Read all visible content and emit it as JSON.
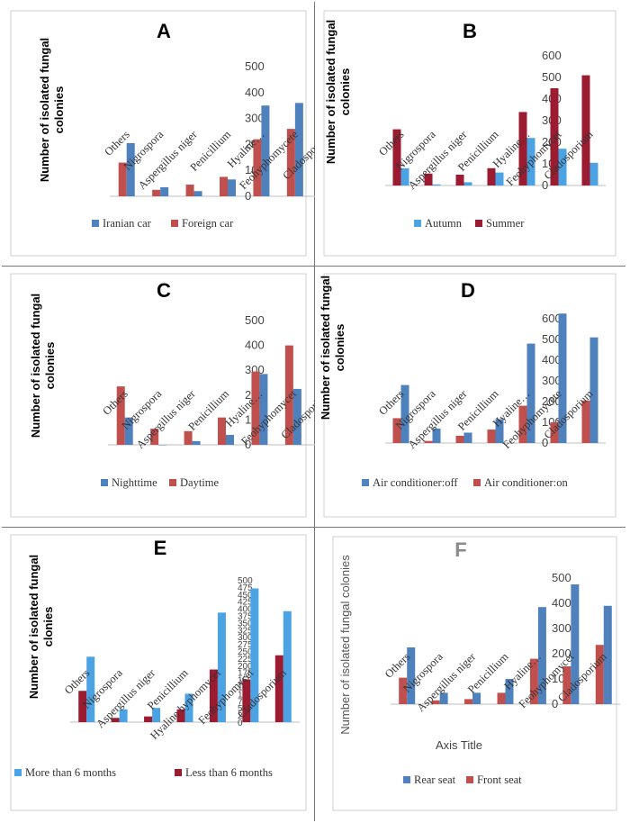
{
  "chart_data": [
    {
      "type": "bar",
      "title": "A",
      "ylabel": "Number of isolated fungal colonies",
      "xlabel": "",
      "categories": [
        "Others",
        "Nigrospora",
        "Aspergillus niger",
        "Penicillium",
        "Hyaline…",
        "Feohyphomycete",
        "Cladosporium"
      ],
      "yticks": [
        "0",
        "100",
        "200",
        "300",
        "400",
        "500"
      ],
      "ylim": [
        0,
        500
      ],
      "series": [
        {
          "name": "Iranian car",
          "color": "#4f81bd",
          "values": [
            205,
            35,
            20,
            65,
            350,
            360,
            430
          ]
        },
        {
          "name": "Foreign car",
          "color": "#c0504d",
          "values": [
            130,
            25,
            45,
            75,
            220,
            260,
            195
          ]
        }
      ],
      "legend_position": "bottom",
      "grid": false
    },
    {
      "type": "bar",
      "title": "B",
      "ylabel": "Number of isolated fungal colonies",
      "xlabel": "",
      "categories": [
        "Others",
        "Nigrospora",
        "Aspergillus niger",
        "Penicillium",
        "Hyaline…",
        "Feohyphomycet",
        "Cladosporium"
      ],
      "yticks": [
        "0",
        "100",
        "200",
        "300",
        "400",
        "500",
        "600"
      ],
      "ylim": [
        0,
        600
      ],
      "series": [
        {
          "name": "Autumn",
          "color": "#4ba3e3",
          "values": [
            80,
            5,
            15,
            60,
            220,
            170,
            105
          ]
        },
        {
          "name": "Summer",
          "color": "#9b1b30",
          "values": [
            260,
            55,
            50,
            80,
            340,
            450,
            510
          ]
        }
      ],
      "legend_position": "bottom",
      "grid": false
    },
    {
      "type": "bar",
      "title": "C",
      "ylabel": "Number of isolated fungal colonies",
      "xlabel": "",
      "categories": [
        "Others",
        "Nigrospora",
        "Aspergillus niger",
        "Penicillium",
        "Hyaline…",
        "Feohyphomycet",
        "Cladosporium"
      ],
      "yticks": [
        "0",
        "100",
        "200",
        "300",
        "400",
        "500"
      ],
      "ylim": [
        0,
        500
      ],
      "series": [
        {
          "name": "Nighttime",
          "color": "#4f81bd",
          "values": [
            110,
            0,
            15,
            40,
            285,
            225,
            215
          ]
        },
        {
          "name": "Daytime",
          "color": "#c0504d",
          "values": [
            235,
            65,
            55,
            110,
            295,
            400,
            415
          ]
        }
      ],
      "legend_position": "bottom",
      "grid": false
    },
    {
      "type": "bar",
      "title": "D",
      "ylabel": "Number of isolated fungal colonies",
      "xlabel": "",
      "categories": [
        "Others",
        "Nigrospora",
        "Aspergillus niger",
        "Penicillium",
        "Hyaline…",
        "Feohyphomycete",
        "Cladosporium"
      ],
      "yticks": [
        "0",
        "100",
        "200",
        "300",
        "400",
        "500",
        "600"
      ],
      "ylim": [
        0,
        600
      ],
      "series": [
        {
          "name": "Air conditioner:off",
          "color": "#4f81bd",
          "values": [
            280,
            70,
            50,
            115,
            480,
            625,
            510
          ]
        },
        {
          "name": "Air conditioner:on",
          "color": "#c0504d",
          "values": [
            120,
            10,
            35,
            65,
            180,
            100,
            205
          ]
        }
      ],
      "legend_position": "bottom",
      "grid": false
    },
    {
      "type": "bar",
      "title": "E",
      "ylabel": "Number of isolated fungal clonies",
      "xlabel": "",
      "categories": [
        "Others",
        "Nigrospora",
        "Aspergillus niger",
        "Penicillium",
        "Hyaline hyphomycet",
        "Feohyphomycet",
        "Cladosporium"
      ],
      "yticks": [
        "0",
        "25",
        "50",
        "75",
        "100",
        "125",
        "150",
        "175",
        "200",
        "225",
        "250",
        "275",
        "300",
        "325",
        "350",
        "375",
        "400",
        "425",
        "450",
        "475",
        "500"
      ],
      "ylim": [
        0,
        500
      ],
      "series": [
        {
          "name": "More than 6 months",
          "color": "#4ba3e3",
          "values": [
            230,
            45,
            50,
            100,
            385,
            470,
            390
          ]
        },
        {
          "name": "Less than 6 months",
          "color": "#9b1b30",
          "values": [
            110,
            15,
            20,
            45,
            185,
            150,
            235
          ]
        }
      ],
      "legend_position": "bottom",
      "grid": false
    },
    {
      "type": "bar",
      "title": "F",
      "ylabel": "Number of isolated fungal colonies",
      "xlabel": "Axis Title",
      "categories": [
        "Others",
        "Nigrospora",
        "Aspergillus niger",
        "Penicillium",
        "Hyaline…",
        "Feohyphomycet",
        "Cladosporium"
      ],
      "yticks": [
        "0",
        "100",
        "200",
        "300",
        "400",
        "500"
      ],
      "ylim": [
        0,
        500
      ],
      "series": [
        {
          "name": "Rear seat",
          "color": "#4f81bd",
          "values": [
            225,
            45,
            45,
            100,
            385,
            475,
            390
          ]
        },
        {
          "name": "Front seat",
          "color": "#c0504d",
          "values": [
            105,
            15,
            20,
            45,
            180,
            150,
            235
          ]
        }
      ],
      "legend_position": "bottom",
      "grid": false
    }
  ]
}
